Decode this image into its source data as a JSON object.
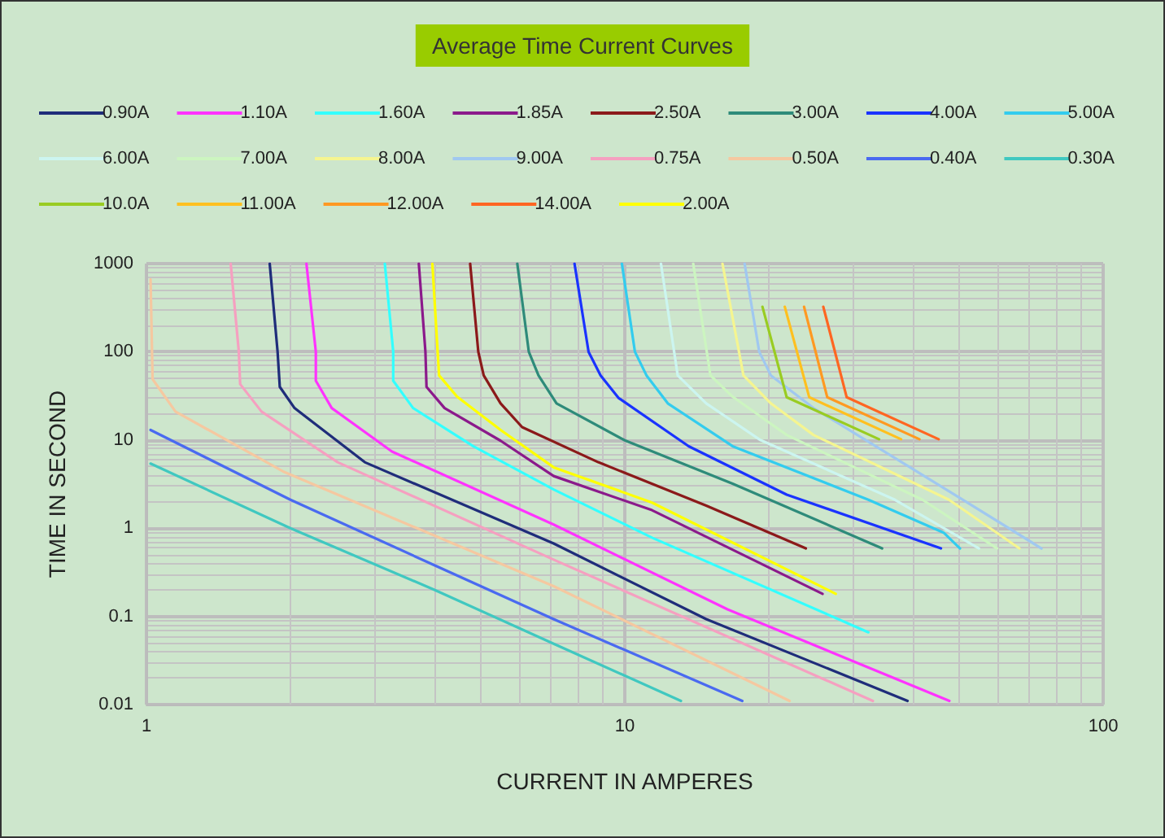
{
  "chart_data": {
    "type": "line",
    "title": "Average Time Current Curves",
    "xlabel": "CURRENT IN AMPERES",
    "ylabel": "TIME IN SECOND",
    "log": "xy",
    "xlim": [
      1,
      100
    ],
    "ylim": [
      0.01,
      1000
    ],
    "xticks": [
      1,
      10,
      100
    ],
    "yticks": [
      0.01,
      0.1,
      1,
      10,
      100,
      1000
    ],
    "grid": true,
    "legend": "top",
    "marker": "none",
    "line_style": "solid",
    "series": [
      {
        "name": "0.90A",
        "color": "#1f2d7a",
        "x": [
          1.81,
          1.88,
          1.9,
          2.04,
          2.86,
          7.1,
          14.8,
          39
        ],
        "values": [
          1000,
          100,
          40,
          23,
          5.6,
          0.67,
          0.093,
          0.011
        ]
      },
      {
        "name": "1.10A",
        "color": "#ff33ff",
        "x": [
          2.16,
          2.26,
          2.26,
          2.44,
          3.26,
          7.1,
          16.4,
          47.7
        ],
        "values": [
          1000,
          100,
          47,
          23,
          7.4,
          1.1,
          0.12,
          0.011
        ]
      },
      {
        "name": "1.60A",
        "color": "#33ffff",
        "x": [
          3.15,
          3.28,
          3.28,
          3.61,
          4.82,
          7.1,
          11.4,
          32.3
        ],
        "values": [
          1000,
          100,
          47,
          23,
          8.5,
          2.75,
          0.78,
          0.066
        ]
      },
      {
        "name": "1.85A",
        "color": "#8b1a8b",
        "x": [
          3.71,
          3.83,
          3.85,
          4.2,
          5.5,
          7.1,
          11.4,
          25.9
        ],
        "values": [
          1000,
          100,
          40,
          23,
          9.8,
          3.9,
          1.6,
          0.18
        ]
      },
      {
        "name": "2.50A",
        "color": "#8b1a1a",
        "x": [
          4.75,
          4.94,
          5.07,
          5.5,
          6.1,
          8.8,
          14.8,
          23.9
        ],
        "values": [
          1000,
          100,
          54,
          26,
          14,
          5.6,
          1.8,
          0.59
        ]
      },
      {
        "name": "3.00A",
        "color": "#2e8b7a",
        "x": [
          5.96,
          6.3,
          6.6,
          7.2,
          10,
          16.8,
          34.5
        ],
        "values": [
          1000,
          100,
          54,
          26,
          9.9,
          3.2,
          0.59
        ]
      },
      {
        "name": "4.00A",
        "color": "#1a33ff",
        "x": [
          7.85,
          8.4,
          8.9,
          9.7,
          13.6,
          21.8,
          45.8
        ],
        "values": [
          1000,
          100,
          54,
          30,
          8.5,
          2.4,
          0.59
        ]
      },
      {
        "name": "5.00A",
        "color": "#33ccee",
        "x": [
          9.86,
          10.5,
          11.1,
          12.3,
          16.8,
          32.3,
          46.4,
          50.2
        ],
        "values": [
          1000,
          100,
          54,
          26,
          8.5,
          2.1,
          0.89,
          0.59
        ]
      },
      {
        "name": "6.00A",
        "color": "#ccf5f0",
        "x": [
          11.9,
          12.9,
          14.8,
          19.2,
          36.7,
          55
        ],
        "values": [
          1000,
          54,
          26,
          10,
          2.1,
          0.59
        ]
      },
      {
        "name": "7.00A",
        "color": "#ccf5c0",
        "x": [
          13.9,
          15.1,
          16.8,
          21.8,
          41.9,
          60
        ],
        "values": [
          1000,
          54,
          31,
          11.4,
          2.1,
          0.59
        ]
      },
      {
        "name": "8.00A",
        "color": "#f5f590",
        "x": [
          16,
          17.7,
          20.2,
          24.8,
          47.6,
          66.8
        ],
        "values": [
          1000,
          54,
          26,
          11.4,
          2.1,
          0.59
        ]
      },
      {
        "name": "9.00A",
        "color": "#a0c8f0",
        "x": [
          17.8,
          19.1,
          20.2,
          24.8,
          50.2,
          74.3
        ],
        "values": [
          1000,
          100,
          54,
          23,
          2.2,
          0.59
        ]
      },
      {
        "name": "0.75A",
        "color": "#f5a0c0",
        "x": [
          1.5,
          1.56,
          1.57,
          1.74,
          2.51,
          7.1,
          33
        ],
        "values": [
          1000,
          100,
          43,
          21,
          5.6,
          0.44,
          0.011
        ]
      },
      {
        "name": "0.50A",
        "color": "#f5c8a0",
        "x": [
          1.02,
          1.03,
          1.15,
          1.93,
          7.1,
          22.1
        ],
        "values": [
          662,
          49,
          21,
          4.4,
          0.22,
          0.011
        ]
      },
      {
        "name": "0.40A",
        "color": "#4a6af0",
        "x": [
          1.02,
          2,
          4,
          7.1,
          17.6
        ],
        "values": [
          13,
          2.1,
          0.38,
          0.093,
          0.011
        ]
      },
      {
        "name": "0.30A",
        "color": "#40c8c0",
        "x": [
          1.02,
          2,
          4,
          7.1,
          13.1
        ],
        "values": [
          5.4,
          1,
          0.2,
          0.049,
          0.011
        ]
      },
      {
        "name": "10.0A",
        "color": "#99cc22",
        "x": [
          19.4,
          21.8,
          34
        ],
        "values": [
          324,
          30.5,
          10.2
        ]
      },
      {
        "name": "11.00A",
        "color": "#ffc020",
        "x": [
          21.6,
          24.3,
          37.8
        ],
        "values": [
          324,
          30.5,
          10.2
        ]
      },
      {
        "name": "12.00A",
        "color": "#ff9922",
        "x": [
          23.7,
          26.5,
          41.3
        ],
        "values": [
          324,
          30.5,
          10.2
        ]
      },
      {
        "name": "14.00A",
        "color": "#ff6622",
        "x": [
          26,
          29.1,
          45.3
        ],
        "values": [
          324,
          30.5,
          10.2
        ]
      },
      {
        "name": "2.00A",
        "color": "#ffff00",
        "x": [
          3.96,
          4.09,
          4.46,
          5.5,
          7.1,
          11.4,
          27.6
        ],
        "values": [
          1000,
          54,
          31,
          13,
          4.9,
          1.95,
          0.18
        ]
      }
    ]
  }
}
